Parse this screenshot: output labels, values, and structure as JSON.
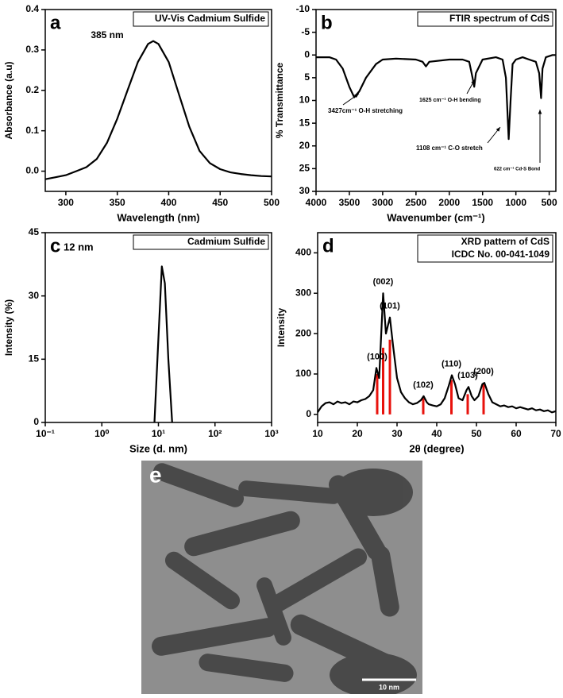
{
  "chart_data": [
    {
      "type": "line",
      "label": "a",
      "title": "UV-Vis Cadmium Sulfide",
      "xlabel": "Wavelength (nm)",
      "ylabel": "Absorbance (a.u)",
      "x": [
        280,
        290,
        300,
        310,
        320,
        330,
        340,
        350,
        360,
        370,
        380,
        385,
        390,
        400,
        410,
        420,
        430,
        440,
        450,
        460,
        470,
        480,
        490,
        500
      ],
      "values": [
        -0.02,
        -0.015,
        -0.01,
        0.0,
        0.01,
        0.03,
        0.07,
        0.13,
        0.2,
        0.27,
        0.315,
        0.322,
        0.315,
        0.27,
        0.19,
        0.11,
        0.05,
        0.02,
        0.005,
        -0.003,
        -0.007,
        -0.01,
        -0.012,
        -0.013
      ],
      "color": "#000000",
      "xlim": [
        280,
        500
      ],
      "xticks": [
        300,
        350,
        400,
        450,
        500
      ],
      "ylim": [
        -0.05,
        0.4
      ],
      "yticks": [
        {
          "value": 0,
          "label": "0.0"
        },
        0.1,
        0.2,
        0.3,
        0.4
      ],
      "annotations": [
        "385 nm"
      ]
    },
    {
      "type": "line",
      "label": "b",
      "title": "FTIR spectrum of CdS",
      "xlabel": "Wavenumber (cm⁻¹)",
      "ylabel": "% Transmittance",
      "x": [
        4000,
        3800,
        3700,
        3600,
        3500,
        3427,
        3350,
        3250,
        3100,
        3000,
        2800,
        2500,
        2400,
        2350,
        2300,
        2000,
        1800,
        1700,
        1650,
        1625,
        1600,
        1500,
        1300,
        1200,
        1150,
        1108,
        1080,
        1050,
        1000,
        900,
        800,
        700,
        650,
        622,
        600,
        550,
        450,
        400
      ],
      "values": [
        0.5,
        0.5,
        1,
        3,
        7,
        9.3,
        8,
        5,
        2,
        1,
        0.8,
        1,
        1.5,
        2.5,
        1.5,
        1,
        1,
        1.5,
        5,
        7,
        4,
        1,
        0.5,
        1,
        5,
        18.5,
        10,
        2,
        1,
        0.5,
        1,
        1.5,
        4,
        9.5,
        3,
        0.5,
        0,
        0
      ],
      "color": "#000000",
      "xlim": [
        4000,
        400
      ],
      "xticks": [
        4000,
        3500,
        3000,
        2500,
        2000,
        1500,
        1000,
        500
      ],
      "ylim": [
        30,
        -10
      ],
      "yticks": [
        -10,
        -5,
        0,
        5,
        10,
        15,
        20,
        25,
        30
      ],
      "annotations": [
        "3427cm⁻¹ O-H stretching",
        "1625 cm⁻¹ O-H bending",
        "1108 cm⁻¹ C-O stretch",
        "622 cm⁻¹ Cd-S Bond"
      ]
    },
    {
      "type": "line",
      "label": "c",
      "title": "Cadmium Sulfide",
      "xlabel": "Size (d. nm)",
      "ylabel": "Intensity (%)",
      "x": [
        8.5,
        10,
        11.5,
        13,
        15,
        17.5
      ],
      "values": [
        0,
        20,
        37,
        33,
        15,
        0
      ],
      "color": "#000000",
      "xlog": true,
      "xlim": [
        0.1,
        1000
      ],
      "xticks": [
        {
          "value": 0.1,
          "label": "10⁻¹"
        },
        {
          "value": 1,
          "label": "10⁰"
        },
        {
          "value": 10,
          "label": "10¹"
        },
        {
          "value": 100,
          "label": "10²"
        },
        {
          "value": 1000,
          "label": "10³"
        }
      ],
      "ylim": [
        0,
        45
      ],
      "yticks": [
        0,
        15,
        30,
        45
      ],
      "annotations": [
        "12 nm"
      ]
    },
    {
      "type": "line",
      "label": "d",
      "title": "XRD pattern of CdS",
      "subtitle": "ICDC No. 00-041-1049",
      "xlabel": "2θ (degree)",
      "ylabel": "Intensity",
      "x": [
        10,
        11,
        12,
        13,
        14,
        15,
        16,
        17,
        18,
        19,
        20,
        21,
        22,
        23,
        24,
        24.8,
        25.5,
        26.5,
        27.2,
        28.2,
        29,
        30,
        31,
        32,
        33,
        34,
        35,
        36,
        36.7,
        37.5,
        38,
        39,
        40,
        41,
        42,
        43,
        43.8,
        44.6,
        45.5,
        46.5,
        47.5,
        48,
        48.8,
        49.5,
        50.5,
        51.5,
        52,
        53,
        54,
        55,
        56,
        57,
        58,
        59,
        60,
        61,
        62,
        63,
        64,
        65,
        66,
        67,
        68,
        69,
        70
      ],
      "values": [
        5,
        20,
        28,
        30,
        25,
        32,
        28,
        30,
        25,
        32,
        30,
        35,
        38,
        45,
        60,
        115,
        90,
        300,
        200,
        240,
        170,
        90,
        55,
        40,
        30,
        25,
        28,
        35,
        45,
        30,
        25,
        22,
        20,
        25,
        40,
        70,
        97,
        75,
        40,
        35,
        60,
        68,
        45,
        35,
        45,
        75,
        78,
        50,
        30,
        25,
        20,
        22,
        18,
        20,
        15,
        18,
        15,
        12,
        15,
        10,
        12,
        8,
        10,
        5,
        8
      ],
      "color": "#000000",
      "xlim": [
        10,
        70
      ],
      "xticks": [
        10,
        20,
        30,
        40,
        50,
        60,
        70
      ],
      "ylim": [
        -20,
        450
      ],
      "yticks": [
        0,
        100,
        200,
        300,
        400
      ],
      "reference_peaks": {
        "x": [
          25,
          26.5,
          28.2,
          36.6,
          43.7,
          47.8,
          51.8
        ],
        "values": [
          100,
          165,
          185,
          40,
          85,
          50,
          75
        ],
        "color": "#e8120c",
        "labels": [
          "(100)",
          "(002)",
          "(101)",
          "(102)",
          "(110)",
          "(103)",
          "(200)"
        ]
      }
    }
  ],
  "image": {
    "label": "e",
    "scale_bar": "10 nm"
  }
}
